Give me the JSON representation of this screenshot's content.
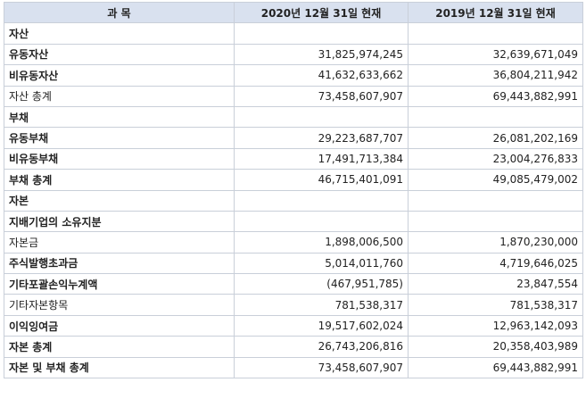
{
  "header": {
    "col_subject": "과    목",
    "col_2020": "2020년 12월 31일 현재",
    "col_2019": "2019년 12월 31일 현재"
  },
  "rows": [
    {
      "label": "자산",
      "v2020": "",
      "v2019": ""
    },
    {
      "label": "유동자산",
      "v2020": "31,825,974,245",
      "v2019": "32,639,671,049"
    },
    {
      "label": "비유동자산",
      "v2020": "41,632,633,662",
      "v2019": "36,804,211,942"
    },
    {
      "label": "자산 총계",
      "v2020": "73,458,607,907",
      "v2019": "69,443,882,991"
    },
    {
      "label": "부채",
      "v2020": "",
      "v2019": ""
    },
    {
      "label": "유동부채",
      "v2020": "29,223,687,707",
      "v2019": "26,081,202,169"
    },
    {
      "label": "비유동부채",
      "v2020": "17,491,713,384",
      "v2019": "23,004,276,833"
    },
    {
      "label": "부채 총계",
      "v2020": "46,715,401,091",
      "v2019": "49,085,479,002"
    },
    {
      "label": "자본",
      "v2020": "",
      "v2019": ""
    },
    {
      "label": "지배기업의 소유지분",
      "v2020": "",
      "v2019": ""
    },
    {
      "label": "자본금",
      "v2020": "1,898,006,500",
      "v2019": "1,870,230,000"
    },
    {
      "label": "주식발행초과금",
      "v2020": "5,014,011,760",
      "v2019": "4,719,646,025"
    },
    {
      "label": "기타포괄손익누계액",
      "v2020": "(467,951,785)",
      "v2019": "23,847,554"
    },
    {
      "label": "기타자본항목",
      "v2020": "781,538,317",
      "v2019": "781,538,317"
    },
    {
      "label": "이익잉여금",
      "v2020": "19,517,602,024",
      "v2019": "12,963,142,093"
    },
    {
      "label": "자본 총계",
      "v2020": "26,743,206,816",
      "v2019": "20,358,403,989"
    },
    {
      "label": "자본 및 부채 총계",
      "v2020": "73,458,607,907",
      "v2019": "69,443,882,991"
    }
  ]
}
